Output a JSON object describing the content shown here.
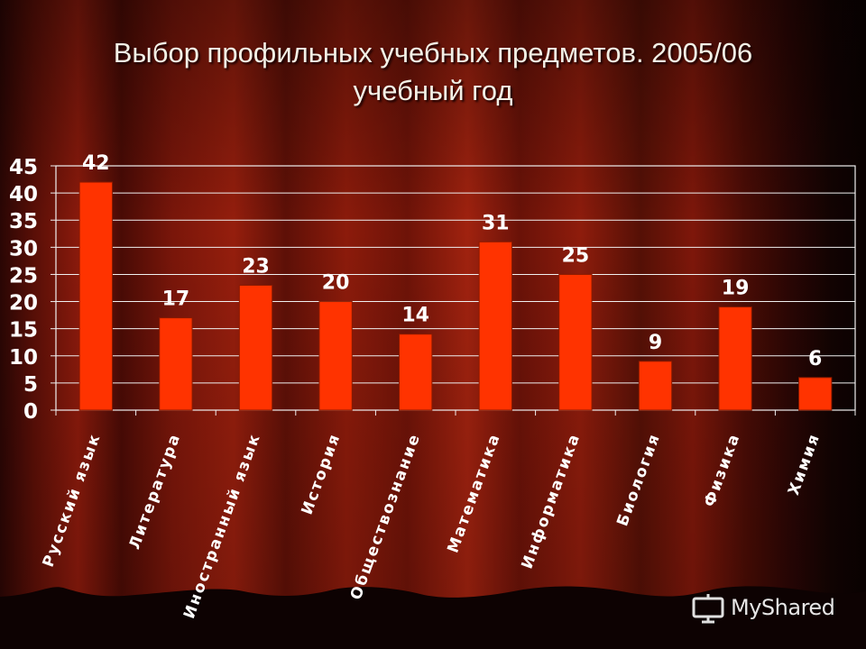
{
  "slide": {
    "title_line1": "Выбор профильных учебных предметов. 2005/06",
    "title_line2": "учебный год",
    "watermark": "MyShared"
  },
  "colors": {
    "bar": "#ff3300",
    "bar_edge": "#8b1a00",
    "axis_text": "#ffffff",
    "grid": "#f0f0f0",
    "background_dark": "#1e0503",
    "background_red": "#7a1408"
  },
  "chart_data": {
    "type": "bar",
    "title": "",
    "xlabel": "",
    "ylabel": "",
    "categories": [
      "Русский язык",
      "Литература",
      "Иностранный язык",
      "История",
      "Обществознание",
      "Математика",
      "Информатика",
      "Биология",
      "Физика",
      "Химия"
    ],
    "values": [
      42,
      17,
      23,
      20,
      14,
      31,
      25,
      9,
      19,
      6
    ],
    "data_labels": [
      "42",
      "17",
      "23",
      "20",
      "14",
      "31",
      "25",
      "9",
      "19",
      "6"
    ],
    "ylim": [
      0,
      45
    ],
    "yticks": [
      0,
      5,
      10,
      15,
      20,
      25,
      30,
      35,
      40,
      45
    ],
    "grid": true,
    "legend": "none"
  }
}
